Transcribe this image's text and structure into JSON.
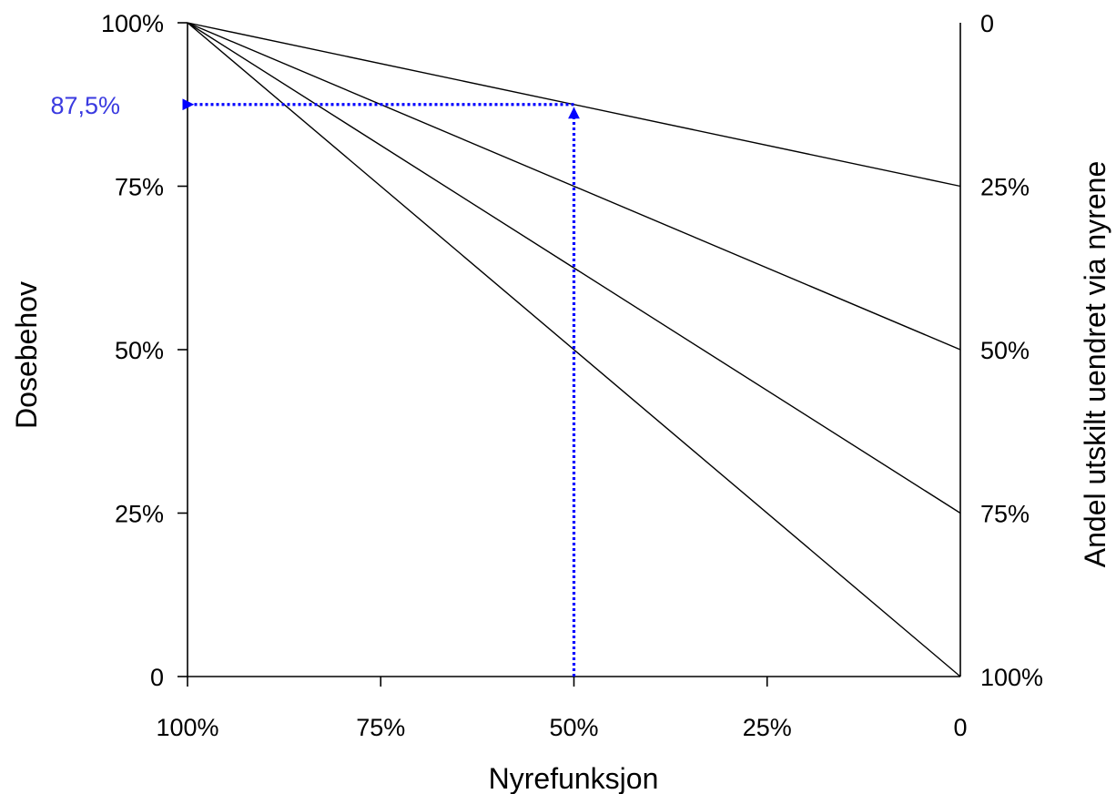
{
  "chart_data": {
    "type": "line",
    "xlabel": "Nyrefunksjon",
    "ylabel": "Dosebehov",
    "y2label": "Andel utskilt uendret via nyrene",
    "x_reversed": true,
    "xlim": [
      0,
      100
    ],
    "ylim": [
      0,
      100
    ],
    "x_ticks": [
      100,
      75,
      50,
      25,
      0
    ],
    "x_tick_labels": [
      "100%",
      "75%",
      "50%",
      "25%",
      "0"
    ],
    "y_ticks": [
      100,
      75,
      50,
      25,
      0
    ],
    "y_tick_labels": [
      "100%",
      "75%",
      "50%",
      "25%",
      "0"
    ],
    "y2_ticks": [
      100,
      75,
      50,
      25,
      0
    ],
    "y2_tick_labels": [
      "0",
      "25%",
      "50%",
      "75%",
      "100%"
    ],
    "grid": false,
    "series": [
      {
        "x": [
          100,
          0
        ],
        "y": [
          100,
          75
        ]
      },
      {
        "x": [
          100,
          0
        ],
        "y": [
          100,
          50
        ]
      },
      {
        "x": [
          100,
          0
        ],
        "y": [
          100,
          25
        ]
      },
      {
        "x": [
          100,
          0
        ],
        "y": [
          100,
          0
        ]
      }
    ],
    "annotation": {
      "x": 50,
      "y": 87.5,
      "label": "87,5%",
      "color": "#3a3ae0",
      "line_color": "#0000ff"
    }
  }
}
